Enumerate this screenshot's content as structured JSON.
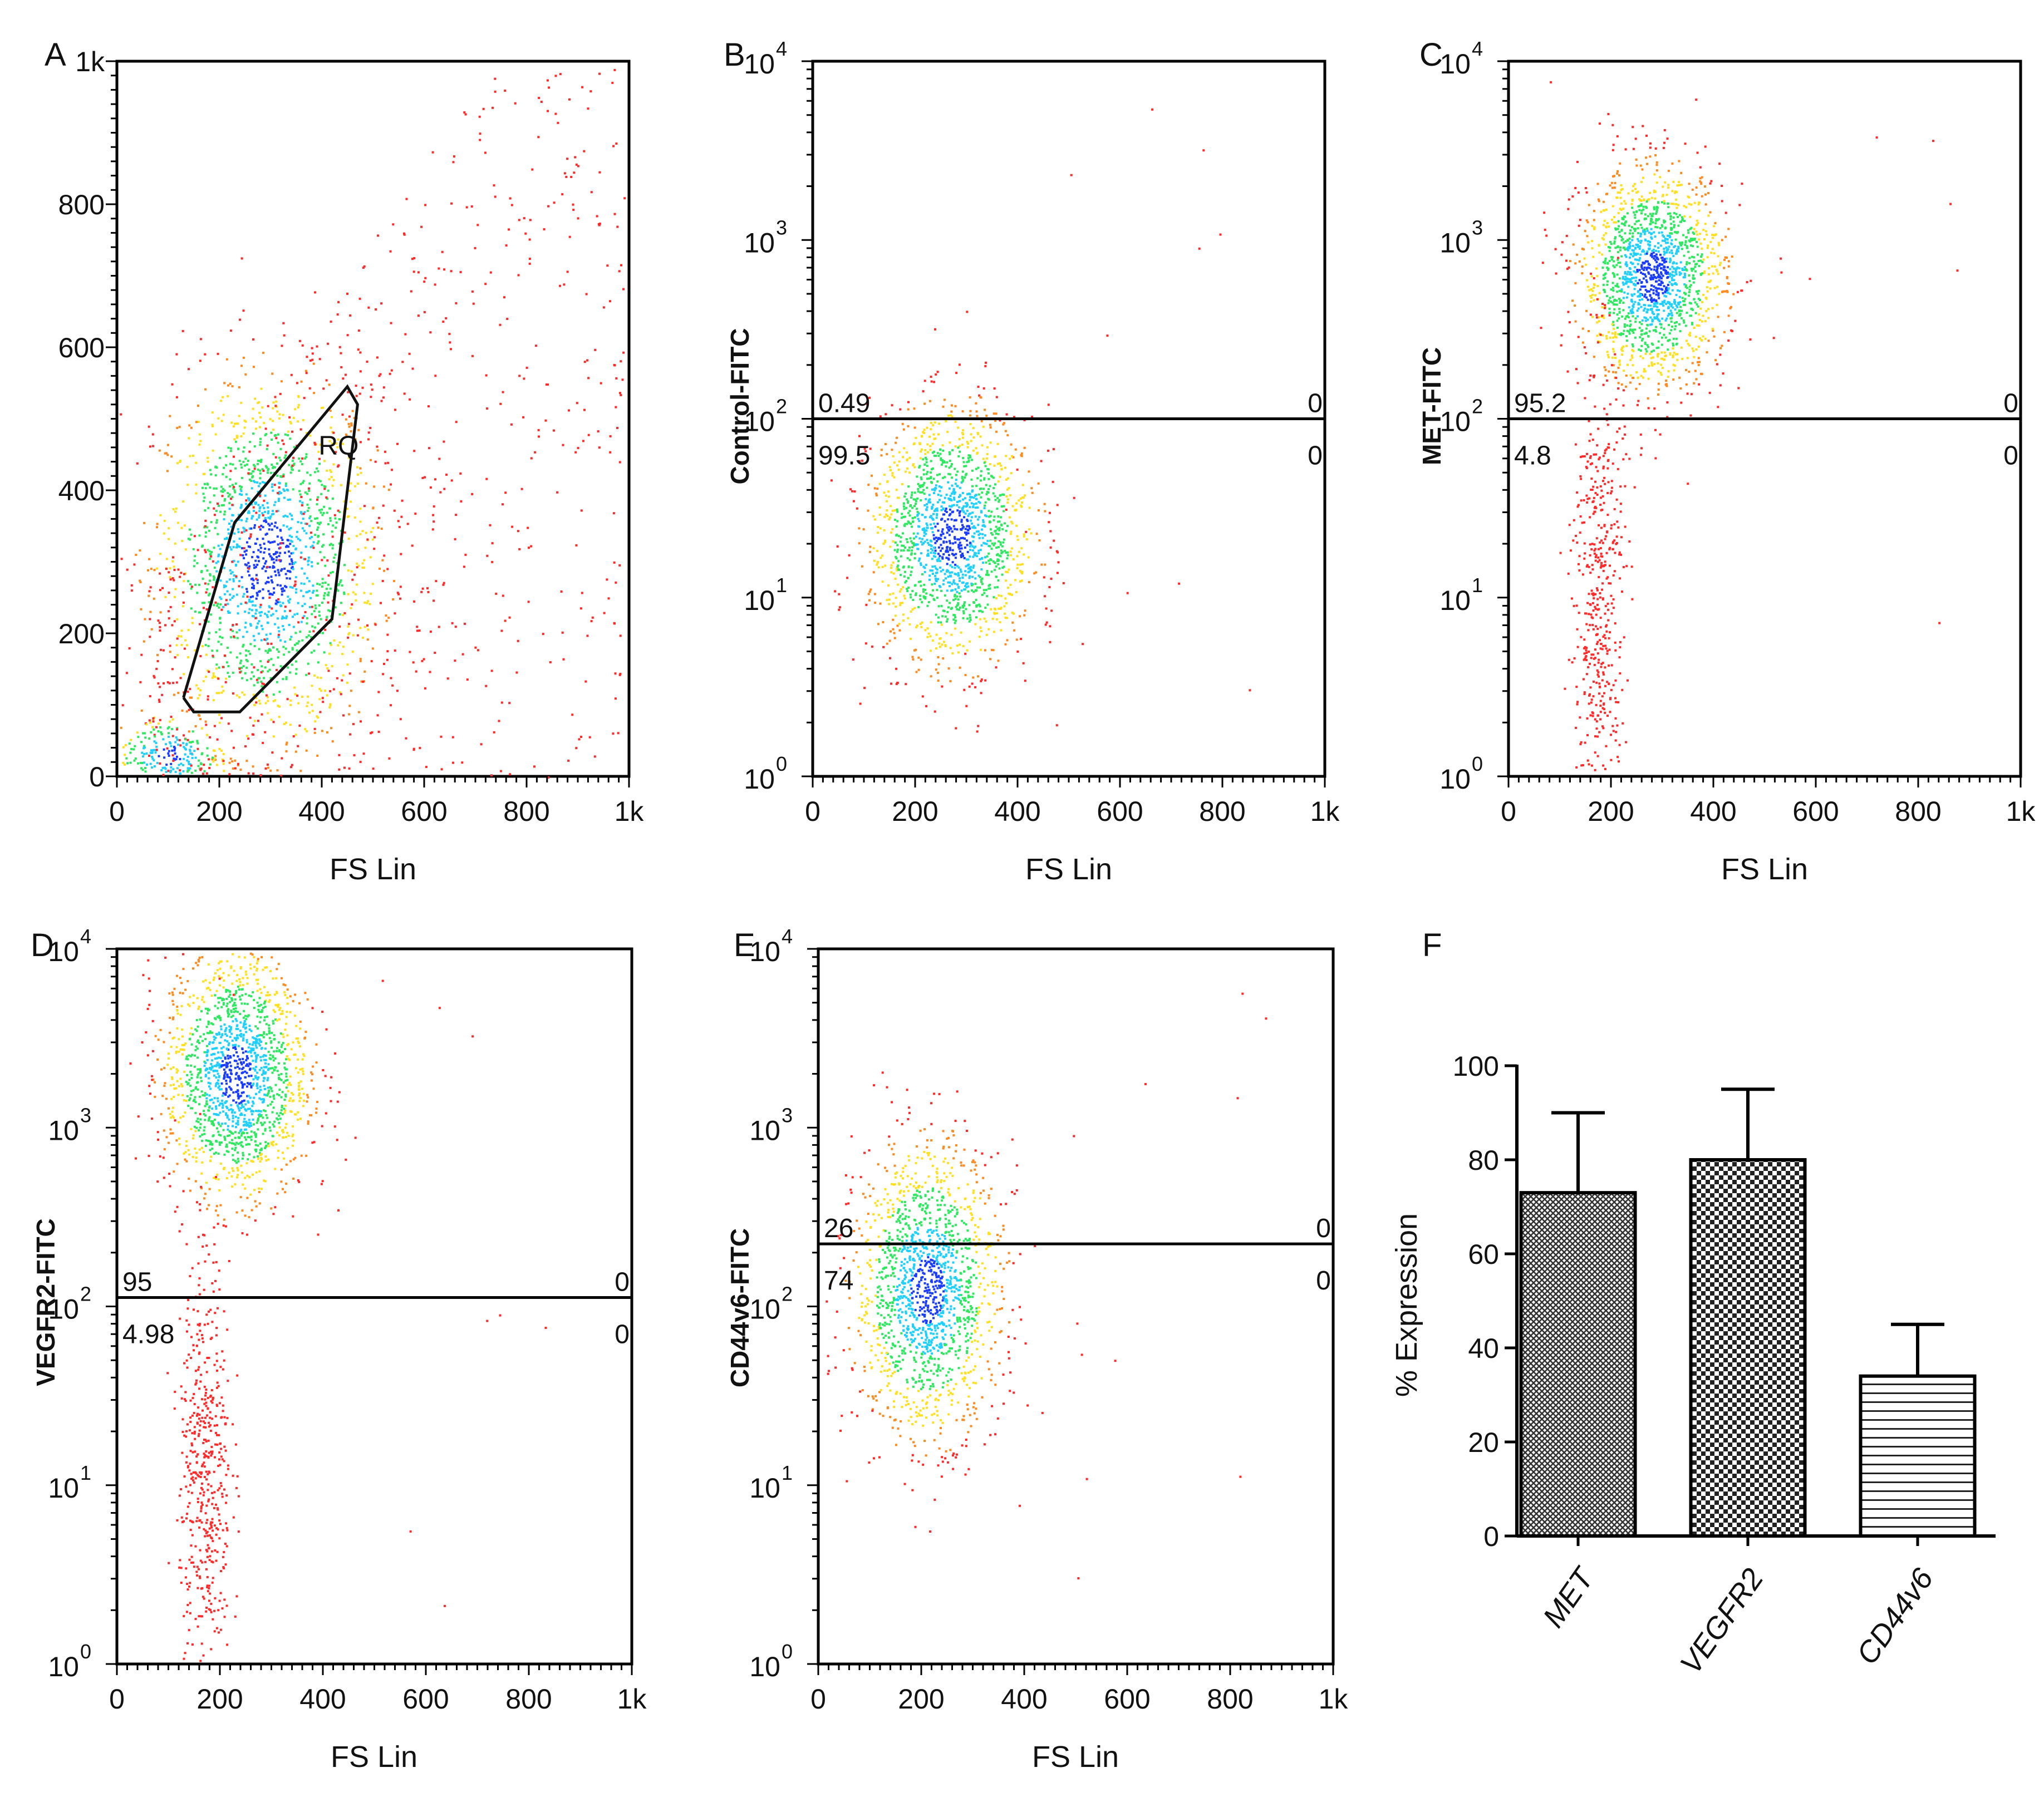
{
  "figure": {
    "colors": {
      "dot": "#ff2a2a",
      "frame": "#000000",
      "bar": "#808080"
    }
  },
  "chart_data": [
    {
      "id": "A",
      "panel_label": "A",
      "type": "scatter",
      "title": "",
      "xlabel": "FS Lin",
      "ylabel": "",
      "xlim": [
        0,
        1000
      ],
      "ylim": [
        0,
        1000
      ],
      "x_ticks": [
        "0",
        "200",
        "400",
        "600",
        "800",
        "1k"
      ],
      "y_ticks": [
        "0",
        "200",
        "400",
        "600",
        "800",
        "1k"
      ],
      "gate": {
        "label": "RQ",
        "vertices": [
          [
            130,
            110
          ],
          [
            150,
            90
          ],
          [
            240,
            90
          ],
          [
            420,
            220
          ],
          [
            470,
            520
          ],
          [
            450,
            545
          ],
          [
            230,
            355
          ],
          [
            130,
            110
          ]
        ]
      },
      "populations": [
        {
          "center": [
            290,
            300
          ],
          "spread": [
            110,
            130
          ],
          "density": "high"
        },
        {
          "center": [
            100,
            30
          ],
          "spread": [
            60,
            30
          ],
          "density": "very high"
        }
      ]
    },
    {
      "id": "B",
      "panel_label": "B",
      "type": "scatter",
      "title": "",
      "xlabel": "FS Lin",
      "ylabel": "Control-FITC",
      "xlim": [
        0,
        1000
      ],
      "ylim_log10": [
        0,
        4
      ],
      "x_ticks": [
        "0",
        "200",
        "400",
        "600",
        "800",
        "1k"
      ],
      "y_ticks": [
        {
          "base": "10",
          "exp": "0"
        },
        {
          "base": "10",
          "exp": "1"
        },
        {
          "base": "10",
          "exp": "2"
        },
        {
          "base": "10",
          "exp": "3"
        },
        {
          "base": "10",
          "exp": "4"
        }
      ],
      "threshold_log10": 2.0,
      "quadrant_labels": {
        "upper_left": "0.49",
        "upper_right": "0",
        "lower_left": "99.5",
        "lower_right": "0"
      },
      "populations": [
        {
          "center": [
            270,
            1.35
          ],
          "spread": [
            80,
            0.35
          ],
          "density": "high"
        }
      ]
    },
    {
      "id": "C",
      "panel_label": "C",
      "type": "scatter",
      "title": "",
      "xlabel": "FS Lin",
      "ylabel": "MET-FITC",
      "xlim": [
        0,
        1000
      ],
      "ylim_log10": [
        0,
        4
      ],
      "x_ticks": [
        "0",
        "200",
        "400",
        "600",
        "800",
        "1k"
      ],
      "y_ticks": [
        {
          "base": "10",
          "exp": "0"
        },
        {
          "base": "10",
          "exp": "1"
        },
        {
          "base": "10",
          "exp": "2"
        },
        {
          "base": "10",
          "exp": "3"
        },
        {
          "base": "10",
          "exp": "4"
        }
      ],
      "threshold_log10": 2.0,
      "quadrant_labels": {
        "upper_left": "95.2",
        "upper_right": "0",
        "lower_left": "4.8",
        "lower_right": "0"
      },
      "populations": [
        {
          "center": [
            280,
            2.8
          ],
          "spread": [
            70,
            0.3
          ],
          "density": "high"
        },
        {
          "center": [
            175,
            1.0
          ],
          "spread": [
            25,
            0.7
          ],
          "density": "low"
        }
      ]
    },
    {
      "id": "D",
      "panel_label": "D",
      "type": "scatter",
      "title": "",
      "xlabel": "FS Lin",
      "ylabel": "VEGFR2-FITC",
      "xlim": [
        0,
        1000
      ],
      "ylim_log10": [
        0,
        4
      ],
      "x_ticks": [
        "0",
        "200",
        "400",
        "600",
        "800",
        "1k"
      ],
      "y_ticks": [
        {
          "base": "10",
          "exp": "0"
        },
        {
          "base": "10",
          "exp": "1"
        },
        {
          "base": "10",
          "exp": "2"
        },
        {
          "base": "10",
          "exp": "3"
        },
        {
          "base": "10",
          "exp": "4"
        }
      ],
      "threshold_log10": 2.05,
      "quadrant_labels": {
        "upper_left": "95",
        "upper_right": "0",
        "lower_left": "4.98",
        "lower_right": "0"
      },
      "populations": [
        {
          "center": [
            230,
            3.3
          ],
          "spread": [
            70,
            0.35
          ],
          "density": "high"
        },
        {
          "center": [
            170,
            1.1
          ],
          "spread": [
            25,
            0.6
          ],
          "density": "low"
        }
      ]
    },
    {
      "id": "E",
      "panel_label": "E",
      "type": "scatter",
      "title": "",
      "xlabel": "FS Lin",
      "ylabel": "CD44v6-FITC",
      "xlim": [
        0,
        1000
      ],
      "ylim_log10": [
        0,
        4
      ],
      "x_ticks": [
        "0",
        "200",
        "400",
        "600",
        "800",
        "1k"
      ],
      "y_ticks": [
        {
          "base": "10",
          "exp": "0"
        },
        {
          "base": "10",
          "exp": "1"
        },
        {
          "base": "10",
          "exp": "2"
        },
        {
          "base": "10",
          "exp": "3"
        },
        {
          "base": "10",
          "exp": "4"
        }
      ],
      "threshold_log10": 2.35,
      "quadrant_labels": {
        "upper_left": "26",
        "upper_right": "0",
        "lower_left": "74",
        "lower_right": "0"
      },
      "populations": [
        {
          "center": [
            210,
            2.1
          ],
          "spread": [
            70,
            0.4
          ],
          "density": "high"
        }
      ]
    },
    {
      "id": "F",
      "panel_label": "F",
      "type": "bar",
      "title": "",
      "xlabel": "",
      "ylabel": "% Expression",
      "ylim": [
        0,
        100
      ],
      "y_ticks": [
        "0",
        "20",
        "40",
        "60",
        "80",
        "100"
      ],
      "categories": [
        "MET",
        "VEGFR2",
        "CD44v6"
      ],
      "values": [
        73,
        80,
        34
      ],
      "errors": [
        17,
        15,
        11
      ],
      "patterns": [
        "dense-crosshatch",
        "checkerboard",
        "horizontal-lines"
      ]
    }
  ]
}
